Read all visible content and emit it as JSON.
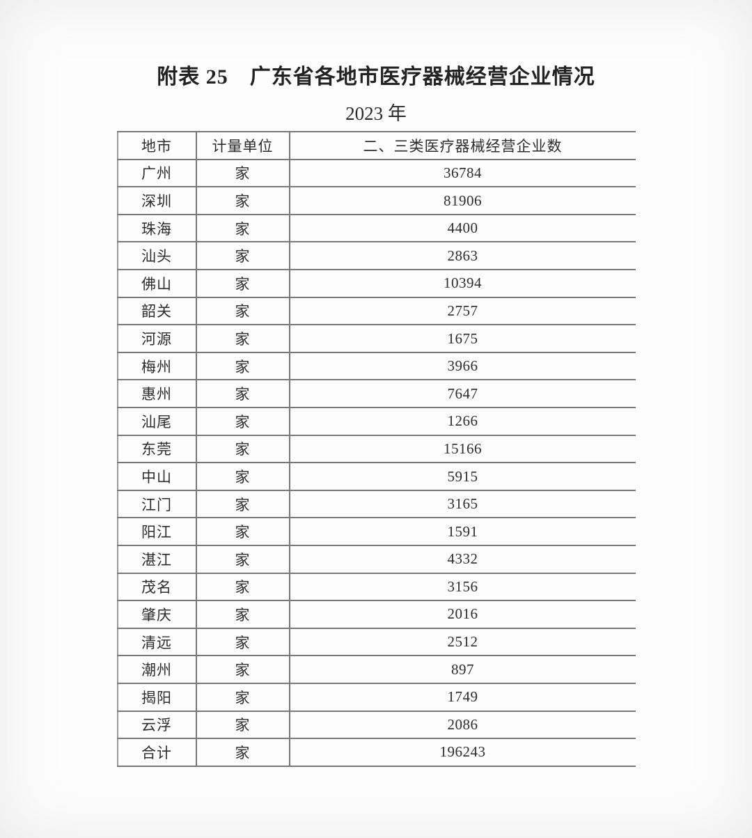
{
  "document": {
    "title": "附表 25　广东省各地市医疗器械经营企业情况",
    "subtitle": "2023 年"
  },
  "table": {
    "columns": [
      "地市",
      "计量单位",
      "二、三类医疗器械经营企业数"
    ],
    "rows": [
      {
        "city": "广州",
        "unit": "家",
        "count": "36784"
      },
      {
        "city": "深圳",
        "unit": "家",
        "count": "81906"
      },
      {
        "city": "珠海",
        "unit": "家",
        "count": "4400"
      },
      {
        "city": "汕头",
        "unit": "家",
        "count": "2863"
      },
      {
        "city": "佛山",
        "unit": "家",
        "count": "10394"
      },
      {
        "city": "韶关",
        "unit": "家",
        "count": "2757"
      },
      {
        "city": "河源",
        "unit": "家",
        "count": "1675"
      },
      {
        "city": "梅州",
        "unit": "家",
        "count": "3966"
      },
      {
        "city": "惠州",
        "unit": "家",
        "count": "7647"
      },
      {
        "city": "汕尾",
        "unit": "家",
        "count": "1266"
      },
      {
        "city": "东莞",
        "unit": "家",
        "count": "15166"
      },
      {
        "city": "中山",
        "unit": "家",
        "count": "5915"
      },
      {
        "city": "江门",
        "unit": "家",
        "count": "3165"
      },
      {
        "city": "阳江",
        "unit": "家",
        "count": "1591"
      },
      {
        "city": "湛江",
        "unit": "家",
        "count": "4332"
      },
      {
        "city": "茂名",
        "unit": "家",
        "count": "3156"
      },
      {
        "city": "肇庆",
        "unit": "家",
        "count": "2016"
      },
      {
        "city": "清远",
        "unit": "家",
        "count": "2512"
      },
      {
        "city": "潮州",
        "unit": "家",
        "count": "897"
      },
      {
        "city": "揭阳",
        "unit": "家",
        "count": "1749"
      },
      {
        "city": "云浮",
        "unit": "家",
        "count": "2086"
      },
      {
        "city": "合计",
        "unit": "家",
        "count": "196243"
      }
    ]
  }
}
